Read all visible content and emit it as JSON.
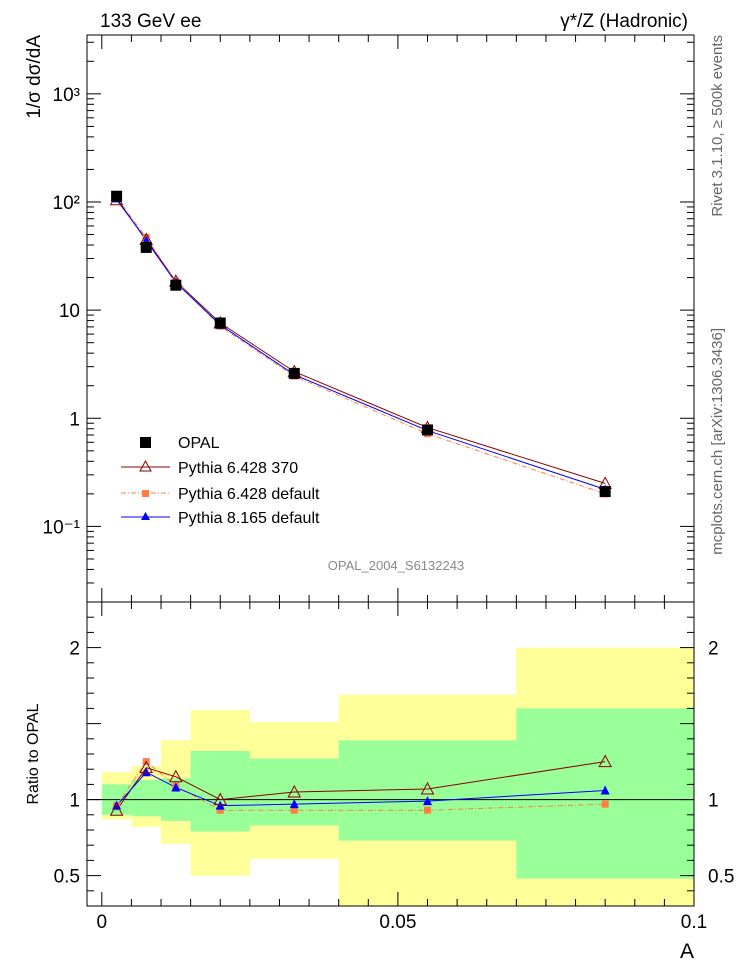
{
  "header": {
    "energy_label": "133 GeV ee",
    "process_label": "γ*/Z (Hadronic)"
  },
  "side_labels": {
    "rivet": "Rivet 3.1.10, ≥ 500k events",
    "mcplots": "mcplots.cern.ch [arXiv:1306.3436]"
  },
  "analysis_id": "OPAL_2004_S6132243",
  "colors": {
    "data": "#000000",
    "pythia6_370": "#8b0000",
    "pythia6_default": "#ff7f3f",
    "pythia8_default": "#0000ff",
    "band_inner": "#99ff99",
    "band_outer": "#ffff99"
  },
  "chart_data": [
    {
      "type": "line",
      "panel": "main",
      "ylabel": "1/σ dσ/dA",
      "yscale": "log",
      "ylim": [
        0.02,
        3500
      ],
      "xlim": [
        -0.0025,
        0.1
      ],
      "y_tick_labels": [
        "10⁻¹",
        "1",
        "10",
        "10²",
        "10³"
      ],
      "legend_placement": "lower-left",
      "x": [
        0.0025,
        0.0075,
        0.0125,
        0.02,
        0.0325,
        0.055,
        0.085
      ],
      "series": [
        {
          "name": "OPAL",
          "marker": "square",
          "values": [
            113,
            38,
            17,
            7.6,
            2.6,
            0.78,
            0.21
          ]
        },
        {
          "name": "Pythia 6.428 370",
          "marker": "open-triangle",
          "values": [
            105,
            45,
            18.5,
            7.6,
            2.7,
            0.82,
            0.25
          ]
        },
        {
          "name": "Pythia 6.428 default",
          "marker": "small-square",
          "values": [
            110,
            47,
            18.5,
            7.1,
            2.45,
            0.72,
            0.2
          ]
        },
        {
          "name": "Pythia 8.165 default",
          "marker": "triangle",
          "values": [
            108,
            44,
            18,
            7.3,
            2.53,
            0.77,
            0.22
          ]
        }
      ]
    },
    {
      "type": "line",
      "panel": "ratio",
      "xlabel": "A",
      "ylabel": "Ratio to OPAL",
      "ylim": [
        0.3,
        2.3
      ],
      "xlim": [
        -0.0025,
        0.1
      ],
      "x_tick_labels": [
        "0",
        "0.05",
        "0.1"
      ],
      "y_tick_labels": [
        "0.5",
        "1",
        "2"
      ],
      "x": [
        0.0025,
        0.0075,
        0.0125,
        0.02,
        0.0325,
        0.055,
        0.085
      ],
      "series": [
        {
          "name": "Pythia 6.428 370",
          "values": [
            0.93,
            1.21,
            1.15,
            1.0,
            1.05,
            1.07,
            1.25
          ]
        },
        {
          "name": "Pythia 6.428 default",
          "values": [
            0.96,
            1.25,
            1.09,
            0.93,
            0.93,
            0.93,
            0.97
          ]
        },
        {
          "name": "Pythia 8.165 default",
          "values": [
            0.96,
            1.18,
            1.08,
            0.96,
            0.97,
            0.99,
            1.06
          ]
        }
      ],
      "uncertainty_bands": {
        "edges": [
          0,
          0.005,
          0.01,
          0.015,
          0.025,
          0.04,
          0.07,
          0.1
        ],
        "inner": [
          [
            0.9,
            1.1
          ],
          [
            0.89,
            1.13
          ],
          [
            0.86,
            1.14
          ],
          [
            0.79,
            1.32
          ],
          [
            0.83,
            1.27
          ],
          [
            0.73,
            1.39
          ],
          [
            0.48,
            1.6
          ]
        ],
        "outer": [
          [
            0.87,
            1.18
          ],
          [
            0.82,
            1.22
          ],
          [
            0.71,
            1.39
          ],
          [
            0.5,
            1.59
          ],
          [
            0.61,
            1.51
          ],
          [
            0.3,
            1.69
          ],
          [
            0.3,
            2.0
          ]
        ]
      }
    }
  ]
}
